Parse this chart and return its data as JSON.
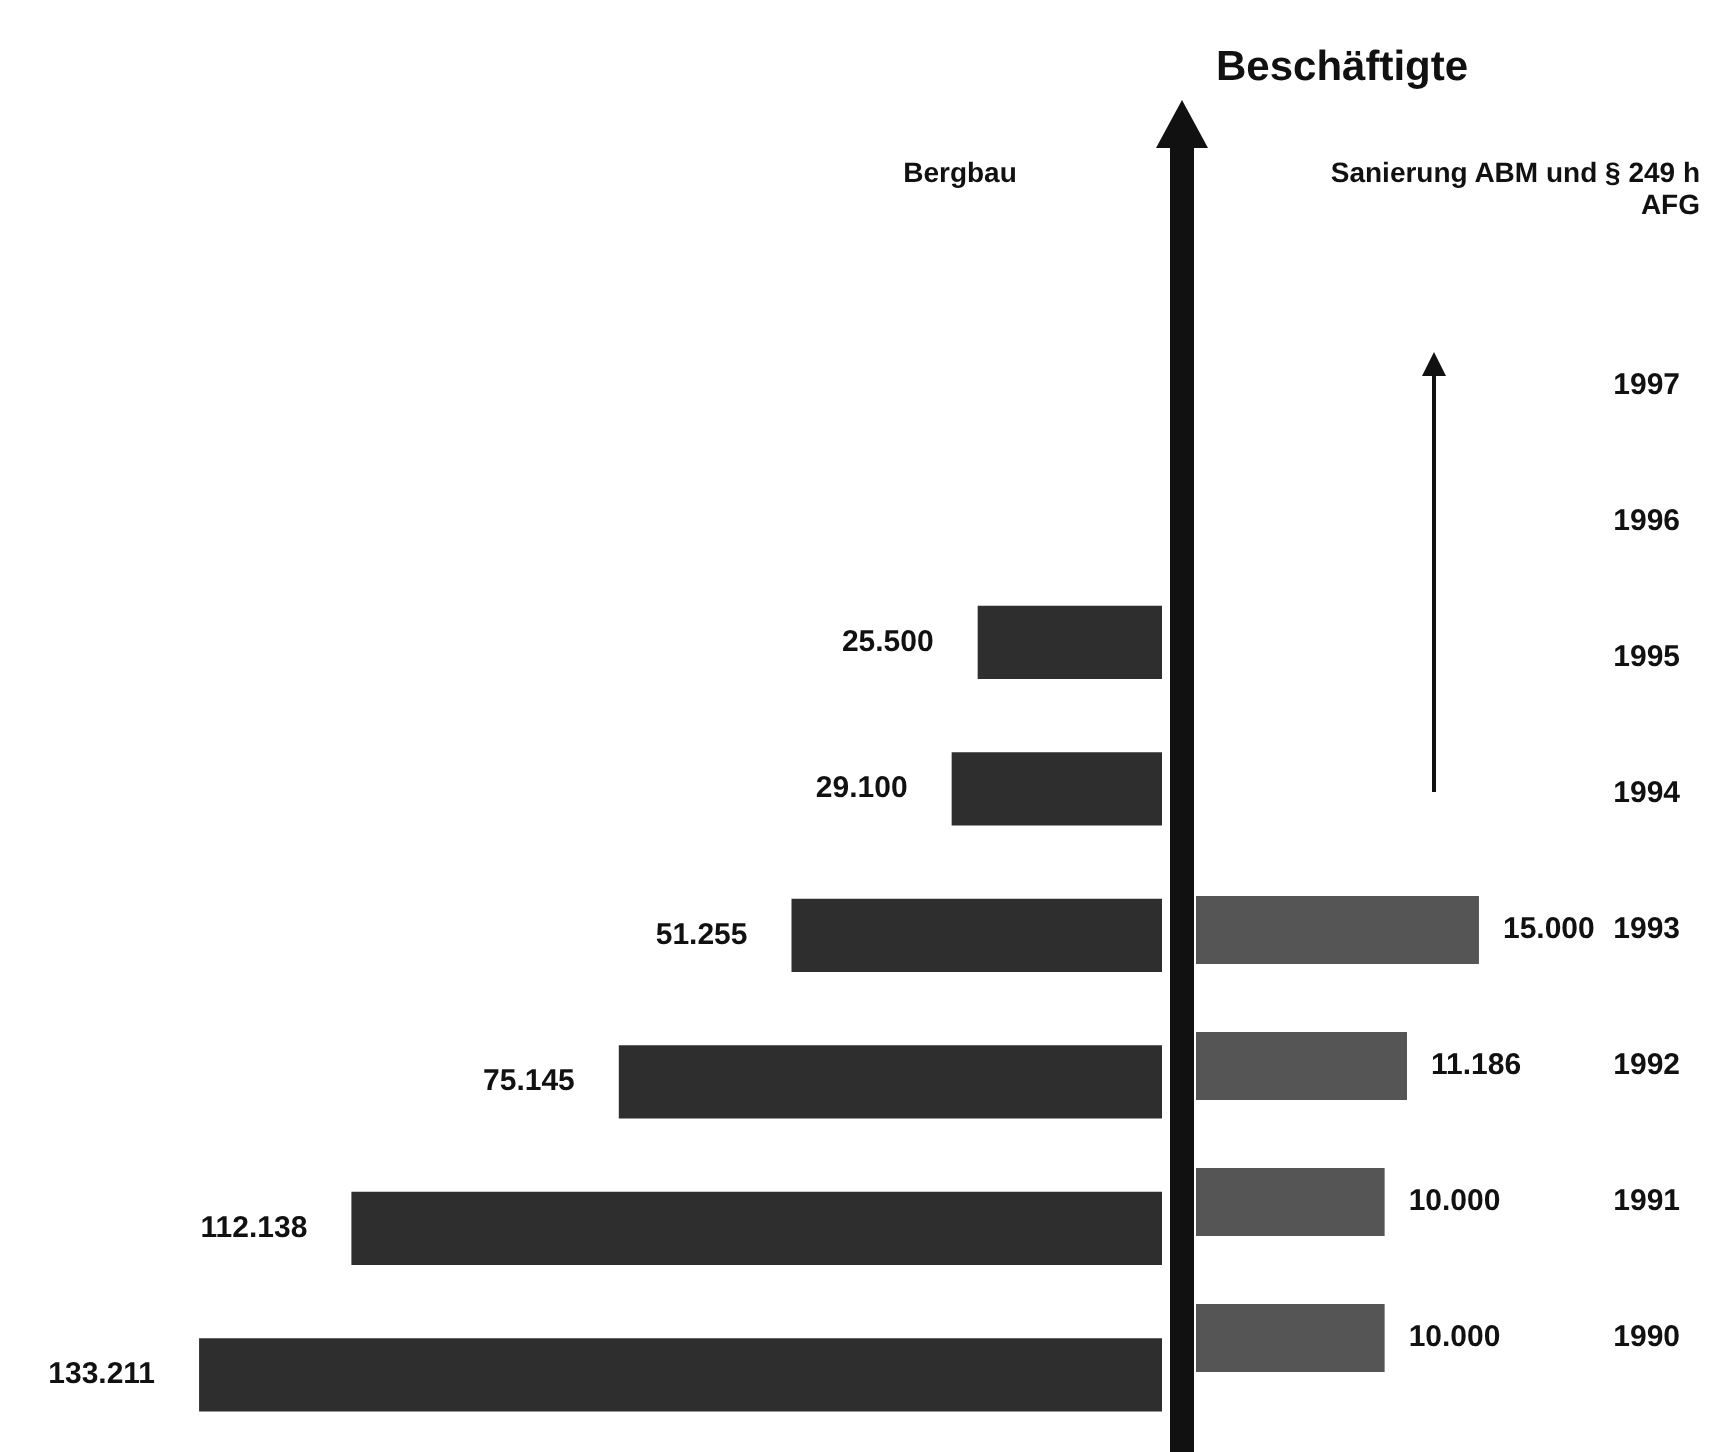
{
  "chart_data": [
    {
      "type": "bar",
      "orientation": "horizontal",
      "subtitle": "Bergbau",
      "categories": [
        "1997",
        "1996",
        "1995",
        "1994",
        "1993",
        "1992",
        "1991",
        "1990"
      ],
      "tick_labels": false,
      "series": [
        {
          "color": "#2e2e2e",
          "values": [
            null,
            null,
            25500,
            29100,
            51255,
            75145,
            112138,
            133211
          ],
          "value_labels": [
            null,
            null,
            "25.500",
            "29.100",
            "51.255",
            "75.145",
            "112.138",
            "133.211"
          ]
        }
      ]
    },
    {
      "type": "bar",
      "orientation": "horizontal",
      "title": "Beschäftigte",
      "subtitle": "Sanierung ABM und § 249 h AFG",
      "categories": [
        "1997",
        "1996",
        "1995",
        "1994",
        "1993",
        "1992",
        "1991",
        "1990"
      ],
      "tick_labels": "y",
      "series": [
        {
          "color": "#555555",
          "values": [
            null,
            null,
            null,
            null,
            15000,
            11186,
            10000,
            10000
          ],
          "value_labels": [
            null,
            null,
            null,
            null,
            "15.000",
            "11.186",
            "10.000",
            "10.000"
          ]
        }
      ]
    }
  ]
}
